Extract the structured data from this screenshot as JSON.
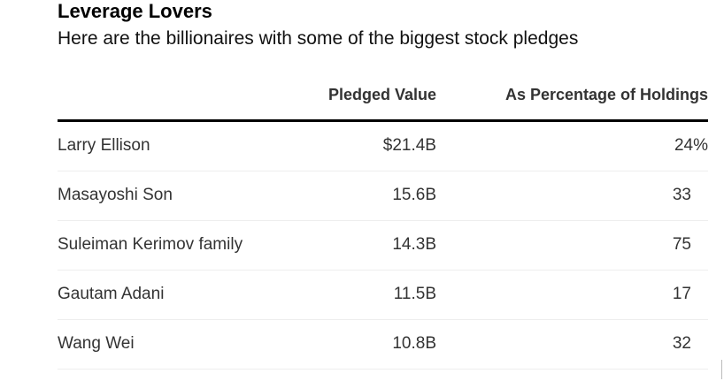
{
  "header": {
    "title": "Leverage Lovers",
    "subtitle": "Here are the billionaires with some of the biggest stock pledges"
  },
  "table": {
    "columns": [
      "",
      "Pledged Value",
      "As Percentage of Holdings"
    ],
    "rows": [
      {
        "name": "Larry Ellison",
        "pledged_value": "$21.4B",
        "percentage": "24%"
      },
      {
        "name": "Masayoshi Son",
        "pledged_value": "15.6B",
        "percentage": "33"
      },
      {
        "name": "Suleiman Kerimov family",
        "pledged_value": "14.3B",
        "percentage": "75"
      },
      {
        "name": "Gautam Adani",
        "pledged_value": "11.5B",
        "percentage": "17"
      },
      {
        "name": "Wang Wei",
        "pledged_value": "10.8B",
        "percentage": "32"
      }
    ]
  }
}
